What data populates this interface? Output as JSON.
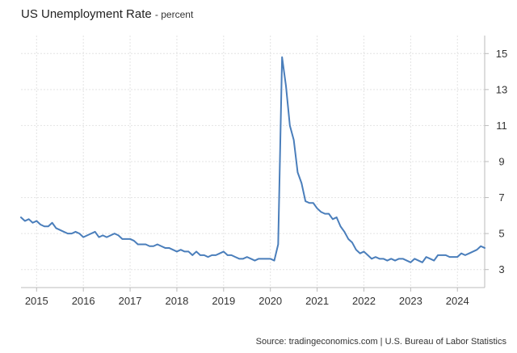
{
  "chart_data": {
    "type": "line",
    "title": "US Unemployment Rate",
    "subtitle": "percent",
    "source": "Source: tradingeconomics.com | U.S. Bureau of Labor Statistics",
    "x_range": [
      "2014-09",
      "2024-08"
    ],
    "x_ticks": [
      "2015",
      "2016",
      "2017",
      "2018",
      "2019",
      "2020",
      "2021",
      "2022",
      "2023",
      "2024"
    ],
    "ylim": [
      2,
      16
    ],
    "y_ticks": [
      3,
      5,
      7,
      9,
      11,
      13,
      15
    ],
    "y_axis_side": "right",
    "grid": true,
    "line_color": "#4a7ebb",
    "series": [
      {
        "x": [
          "2014-09",
          "2014-10",
          "2014-11",
          "2014-12",
          "2015-01",
          "2015-02",
          "2015-03",
          "2015-04",
          "2015-05",
          "2015-06",
          "2015-07",
          "2015-08",
          "2015-09",
          "2015-10",
          "2015-11",
          "2015-12",
          "2016-01",
          "2016-02",
          "2016-03",
          "2016-04",
          "2016-05",
          "2016-06",
          "2016-07",
          "2016-08",
          "2016-09",
          "2016-10",
          "2016-11",
          "2016-12",
          "2017-01",
          "2017-02",
          "2017-03",
          "2017-04",
          "2017-05",
          "2017-06",
          "2017-07",
          "2017-08",
          "2017-09",
          "2017-10",
          "2017-11",
          "2017-12",
          "2018-01",
          "2018-02",
          "2018-03",
          "2018-04",
          "2018-05",
          "2018-06",
          "2018-07",
          "2018-08",
          "2018-09",
          "2018-10",
          "2018-11",
          "2018-12",
          "2019-01",
          "2019-02",
          "2019-03",
          "2019-04",
          "2019-05",
          "2019-06",
          "2019-07",
          "2019-08",
          "2019-09",
          "2019-10",
          "2019-11",
          "2019-12",
          "2020-01",
          "2020-02",
          "2020-03",
          "2020-04",
          "2020-05",
          "2020-06",
          "2020-07",
          "2020-08",
          "2020-09",
          "2020-10",
          "2020-11",
          "2020-12",
          "2021-01",
          "2021-02",
          "2021-03",
          "2021-04",
          "2021-05",
          "2021-06",
          "2021-07",
          "2021-08",
          "2021-09",
          "2021-10",
          "2021-11",
          "2021-12",
          "2022-01",
          "2022-02",
          "2022-03",
          "2022-04",
          "2022-05",
          "2022-06",
          "2022-07",
          "2022-08",
          "2022-09",
          "2022-10",
          "2022-11",
          "2022-12",
          "2023-01",
          "2023-02",
          "2023-03",
          "2023-04",
          "2023-05",
          "2023-06",
          "2023-07",
          "2023-08",
          "2023-09",
          "2023-10",
          "2023-11",
          "2023-12",
          "2024-01",
          "2024-02",
          "2024-03",
          "2024-04",
          "2024-05",
          "2024-06",
          "2024-07",
          "2024-08"
        ],
        "values": [
          5.9,
          5.7,
          5.8,
          5.6,
          5.7,
          5.5,
          5.4,
          5.4,
          5.6,
          5.3,
          5.2,
          5.1,
          5.0,
          5.0,
          5.1,
          5.0,
          4.8,
          4.9,
          5.0,
          5.1,
          4.8,
          4.9,
          4.8,
          4.9,
          5.0,
          4.9,
          4.7,
          4.7,
          4.7,
          4.6,
          4.4,
          4.4,
          4.4,
          4.3,
          4.3,
          4.4,
          4.3,
          4.2,
          4.2,
          4.1,
          4.0,
          4.1,
          4.0,
          4.0,
          3.8,
          4.0,
          3.8,
          3.8,
          3.7,
          3.8,
          3.8,
          3.9,
          4.0,
          3.8,
          3.8,
          3.7,
          3.6,
          3.6,
          3.7,
          3.6,
          3.5,
          3.6,
          3.6,
          3.6,
          3.6,
          3.5,
          4.4,
          14.8,
          13.2,
          11.0,
          10.2,
          8.4,
          7.8,
          6.8,
          6.7,
          6.7,
          6.4,
          6.2,
          6.1,
          6.1,
          5.8,
          5.9,
          5.4,
          5.1,
          4.7,
          4.5,
          4.1,
          3.9,
          4.0,
          3.8,
          3.6,
          3.7,
          3.6,
          3.6,
          3.5,
          3.6,
          3.5,
          3.6,
          3.6,
          3.5,
          3.4,
          3.6,
          3.5,
          3.4,
          3.7,
          3.6,
          3.5,
          3.8,
          3.8,
          3.8,
          3.7,
          3.7,
          3.7,
          3.9,
          3.8,
          3.9,
          4.0,
          4.1,
          4.3,
          4.2
        ]
      }
    ]
  }
}
